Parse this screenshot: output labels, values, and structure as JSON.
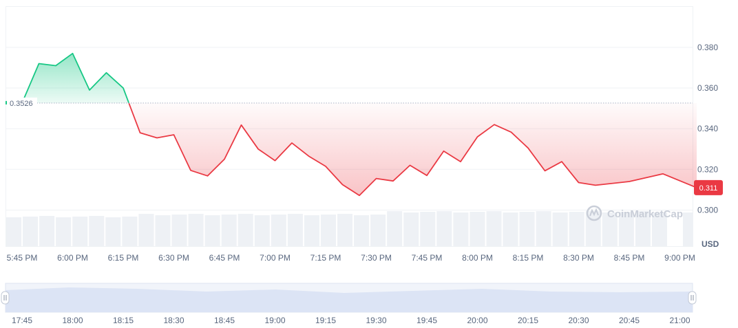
{
  "chart_data": {
    "type": "line",
    "currency": "USD",
    "reference_price": 0.3526,
    "reference_label": "0.3526",
    "current_price_label": "0.311",
    "ylim": [
      0.295,
      0.395
    ],
    "yticks": [
      "0.380",
      "0.360",
      "0.340",
      "0.320",
      "0.300"
    ],
    "ytick_values": [
      0.38,
      0.36,
      0.34,
      0.32,
      0.3
    ],
    "xticks": [
      "5:45 PM",
      "6:00 PM",
      "6:15 PM",
      "6:30 PM",
      "6:45 PM",
      "7:00 PM",
      "7:15 PM",
      "7:30 PM",
      "7:45 PM",
      "8:00 PM",
      "8:15 PM",
      "8:30 PM",
      "8:45 PM",
      "9:00 PM"
    ],
    "xtick_minutes": [
      0,
      15,
      30,
      45,
      60,
      75,
      90,
      105,
      120,
      135,
      150,
      165,
      180,
      195
    ],
    "x_minutes": [
      0,
      5,
      10,
      15,
      20,
      25,
      30,
      35,
      40,
      45,
      50,
      55,
      60,
      65,
      70,
      75,
      80,
      85,
      90,
      95,
      100,
      105,
      110,
      115,
      120,
      125,
      130,
      135,
      140,
      145,
      150,
      155,
      160,
      165,
      170,
      180,
      190,
      200
    ],
    "values": [
      0.3526,
      0.372,
      0.371,
      0.377,
      0.359,
      0.3675,
      0.36,
      0.338,
      0.3355,
      0.337,
      0.3195,
      0.3168,
      0.325,
      0.3418,
      0.33,
      0.3243,
      0.333,
      0.3265,
      0.3215,
      0.3125,
      0.3072,
      0.3155,
      0.3143,
      0.322,
      0.317,
      0.329,
      0.3238,
      0.336,
      0.342,
      0.3383,
      0.3305,
      0.3193,
      0.3238,
      0.3135,
      0.3122,
      0.314,
      0.3178,
      0.311
    ],
    "colors": {
      "up": "#16c784",
      "down": "#ea3943",
      "ref": "#a6b0c3"
    },
    "volume_bars": 40,
    "watermark": "CoinMarketCap",
    "navigator": {
      "ticks": [
        "17:45",
        "18:00",
        "18:15",
        "18:30",
        "18:45",
        "19:00",
        "19:15",
        "19:30",
        "19:45",
        "20:00",
        "20:15",
        "20:30",
        "20:45",
        "21:00"
      ]
    }
  }
}
